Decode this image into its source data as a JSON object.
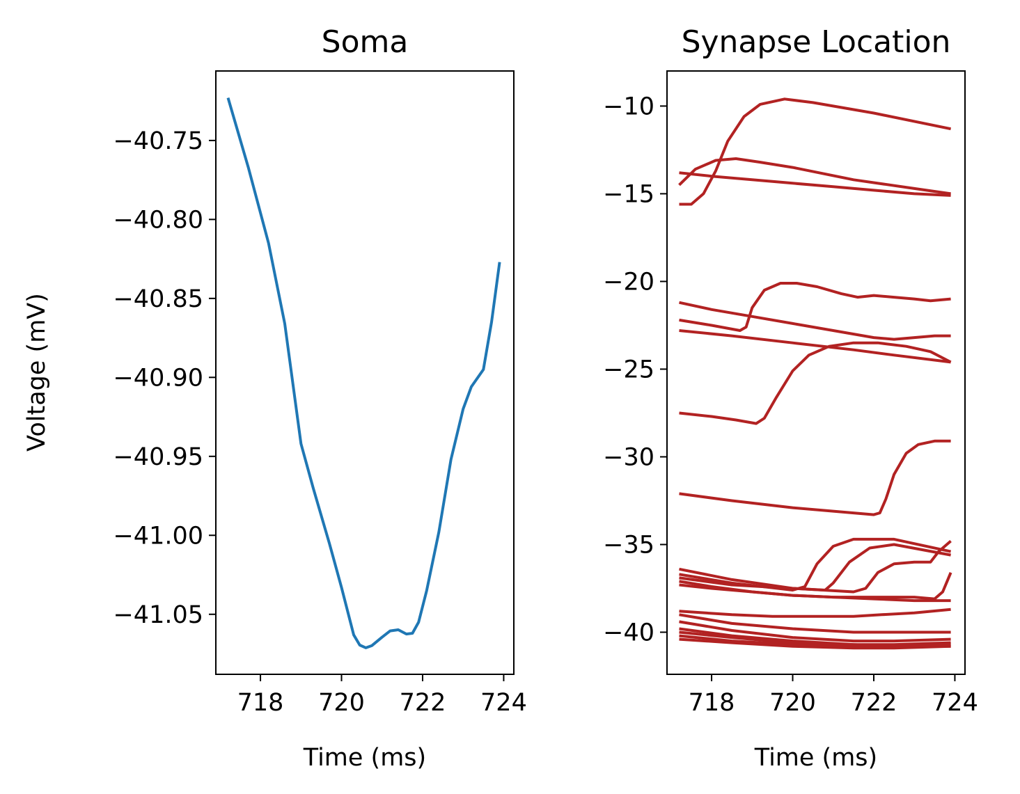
{
  "chart_data": [
    {
      "type": "line",
      "title": "Soma",
      "xlabel": "Time (ms)",
      "ylabel": "Voltage (mV)",
      "xlim": [
        716.9,
        724.25
      ],
      "ylim": [
        -41.088,
        -40.706
      ],
      "xticks": [
        718,
        720,
        722,
        724
      ],
      "xtick_labels": [
        "718",
        "720",
        "722",
        "724"
      ],
      "yticks": [
        -40.75,
        -40.8,
        -40.85,
        -40.9,
        -40.95,
        -41.0,
        -41.05
      ],
      "ytick_labels": [
        "−40.75",
        "−40.80",
        "−40.85",
        "−40.90",
        "−40.95",
        "−41.00",
        "−41.05"
      ],
      "grid": false,
      "colors": {
        "line": "#1f77b4"
      },
      "series": [
        {
          "x": [
            717.2,
            717.7,
            718.2,
            718.6,
            719.0,
            719.3,
            719.7,
            720.0,
            720.3,
            720.45,
            720.6,
            720.75,
            721.0,
            721.2,
            721.4,
            721.6,
            721.75,
            721.9,
            722.1,
            722.4,
            722.7,
            723.0,
            723.2,
            723.5,
            723.7,
            723.9
          ],
          "y": [
            -40.723,
            -40.767,
            -40.815,
            -40.866,
            -40.942,
            -40.97,
            -41.005,
            -41.033,
            -41.063,
            -41.0695,
            -41.0712,
            -41.0698,
            -41.0645,
            -41.0605,
            -41.0598,
            -41.0625,
            -41.062,
            -41.055,
            -41.035,
            -40.998,
            -40.952,
            -40.92,
            -40.906,
            -40.895,
            -40.865,
            -40.827
          ]
        }
      ]
    },
    {
      "type": "line",
      "title": "Synapse Location",
      "xlabel": "Time (ms)",
      "ylabel": "",
      "xlim": [
        716.9,
        724.25
      ],
      "ylim": [
        -42.4,
        -8.0
      ],
      "xticks": [
        718,
        720,
        722,
        724
      ],
      "xtick_labels": [
        "718",
        "720",
        "722",
        "724"
      ],
      "yticks": [
        -10,
        -15,
        -20,
        -25,
        -30,
        -35,
        -40
      ],
      "ytick_labels": [
        "−10",
        "−15",
        "−20",
        "−25",
        "−30",
        "−35",
        "−40"
      ],
      "grid": false,
      "colors": {
        "line": "#b22222"
      },
      "series": [
        {
          "x": [
            717.2,
            717.5,
            717.8,
            718.1,
            718.4,
            718.8,
            719.2,
            719.8,
            720.5,
            722.0,
            723.9
          ],
          "y": [
            -15.6,
            -15.6,
            -15.0,
            -13.7,
            -12.0,
            -10.6,
            -9.9,
            -9.6,
            -9.8,
            -10.4,
            -11.3
          ]
        },
        {
          "x": [
            717.2,
            717.6,
            718.1,
            718.6,
            719.2,
            720.0,
            721.5,
            723.0,
            723.9
          ],
          "y": [
            -14.5,
            -13.6,
            -13.1,
            -13.0,
            -13.2,
            -13.5,
            -14.2,
            -14.7,
            -15.0
          ]
        },
        {
          "x": [
            717.2,
            718.0,
            719.0,
            720.0,
            721.0,
            722.0,
            723.0,
            723.9
          ],
          "y": [
            -13.8,
            -14.0,
            -14.2,
            -14.4,
            -14.6,
            -14.8,
            -15.0,
            -15.1
          ]
        },
        {
          "x": [
            717.2,
            718.0,
            718.7,
            718.85,
            719.0,
            719.3,
            719.7,
            720.1,
            720.6,
            721.2,
            721.6,
            722.0,
            722.5,
            723.0,
            723.4,
            723.9
          ],
          "y": [
            -22.2,
            -22.5,
            -22.8,
            -22.6,
            -21.5,
            -20.5,
            -20.1,
            -20.1,
            -20.3,
            -20.7,
            -20.9,
            -20.8,
            -20.9,
            -21.0,
            -21.1,
            -21.0
          ]
        },
        {
          "x": [
            717.2,
            718.0,
            719.0,
            720.0,
            721.0,
            722.0,
            722.5,
            723.0,
            723.5,
            723.9
          ],
          "y": [
            -21.2,
            -21.6,
            -22.0,
            -22.4,
            -22.8,
            -23.2,
            -23.3,
            -23.2,
            -23.1,
            -23.1
          ]
        },
        {
          "x": [
            717.2,
            718.5,
            720.0,
            721.5,
            722.5,
            723.9
          ],
          "y": [
            -22.8,
            -23.1,
            -23.5,
            -23.9,
            -24.2,
            -24.6
          ]
        },
        {
          "x": [
            717.2,
            718.0,
            718.6,
            719.1,
            719.3,
            719.6,
            720.0,
            720.4,
            720.9,
            721.5,
            722.1,
            722.8,
            723.4,
            723.9
          ],
          "y": [
            -27.5,
            -27.7,
            -27.9,
            -28.1,
            -27.8,
            -26.6,
            -25.1,
            -24.2,
            -23.7,
            -23.5,
            -23.5,
            -23.7,
            -24.0,
            -24.6
          ]
        },
        {
          "x": [
            717.2,
            718.5,
            720.0,
            721.5,
            722.0,
            722.15,
            722.3,
            722.5,
            722.8,
            723.1,
            723.5,
            723.9
          ],
          "y": [
            -32.1,
            -32.5,
            -32.9,
            -33.2,
            -33.3,
            -33.2,
            -32.4,
            -31.0,
            -29.8,
            -29.3,
            -29.1,
            -29.1
          ]
        },
        {
          "x": [
            717.2,
            718.5,
            720.0,
            720.3,
            720.6,
            721.0,
            721.5,
            722.5,
            723.9
          ],
          "y": [
            -36.7,
            -37.2,
            -37.6,
            -37.4,
            -36.1,
            -35.1,
            -34.7,
            -34.7,
            -35.4
          ]
        },
        {
          "x": [
            717.2,
            718.5,
            720.0,
            720.8,
            721.0,
            721.4,
            721.9,
            722.5,
            723.9
          ],
          "y": [
            -36.4,
            -37.0,
            -37.5,
            -37.6,
            -37.2,
            -36.0,
            -35.2,
            -35.0,
            -35.6
          ]
        },
        {
          "x": [
            717.2,
            718.5,
            720.0,
            721.5,
            721.8,
            722.1,
            722.5,
            723.0,
            723.4,
            723.6,
            723.9
          ],
          "y": [
            -36.9,
            -37.3,
            -37.5,
            -37.7,
            -37.5,
            -36.6,
            -36.1,
            -36.0,
            -36.0,
            -35.4,
            -34.8
          ]
        },
        {
          "x": [
            717.2,
            718.0,
            719.0,
            720.0,
            721.0,
            722.0,
            723.0,
            723.5,
            723.7,
            723.9
          ],
          "y": [
            -37.1,
            -37.4,
            -37.7,
            -37.9,
            -38.0,
            -38.0,
            -38.0,
            -38.1,
            -37.7,
            -36.6
          ]
        },
        {
          "x": [
            717.2,
            718.0,
            719.0,
            720.0,
            721.0,
            722.0,
            723.0,
            723.9
          ],
          "y": [
            -37.3,
            -37.5,
            -37.7,
            -37.9,
            -38.0,
            -38.1,
            -38.2,
            -38.2
          ]
        },
        {
          "x": [
            717.2,
            718.5,
            719.5,
            720.5,
            721.5,
            722.2,
            723.0,
            723.9
          ],
          "y": [
            -38.8,
            -39.0,
            -39.1,
            -39.1,
            -39.1,
            -39.0,
            -38.9,
            -38.7
          ]
        },
        {
          "x": [
            717.2,
            718.5,
            720.0,
            721.5,
            722.5,
            723.9
          ],
          "y": [
            -39.0,
            -39.5,
            -39.8,
            -40.0,
            -40.0,
            -40.0
          ]
        },
        {
          "x": [
            717.2,
            718.5,
            720.0,
            721.5,
            722.5,
            723.9
          ],
          "y": [
            -39.4,
            -39.9,
            -40.3,
            -40.5,
            -40.5,
            -40.4
          ]
        },
        {
          "x": [
            717.2,
            718.5,
            720.0,
            721.5,
            722.5,
            723.9
          ],
          "y": [
            -39.8,
            -40.2,
            -40.5,
            -40.7,
            -40.7,
            -40.6
          ]
        },
        {
          "x": [
            717.2,
            718.5,
            720.0,
            721.5,
            722.5,
            723.9
          ],
          "y": [
            -40.0,
            -40.3,
            -40.6,
            -40.7,
            -40.8,
            -40.7
          ]
        },
        {
          "x": [
            717.2,
            718.5,
            720.0,
            721.5,
            722.5,
            723.9
          ],
          "y": [
            -40.2,
            -40.5,
            -40.7,
            -40.8,
            -40.8,
            -40.8
          ]
        },
        {
          "x": [
            717.2,
            718.5,
            720.0,
            721.5,
            722.5,
            723.9
          ],
          "y": [
            -40.4,
            -40.6,
            -40.8,
            -40.9,
            -40.9,
            -40.8
          ]
        }
      ]
    }
  ]
}
